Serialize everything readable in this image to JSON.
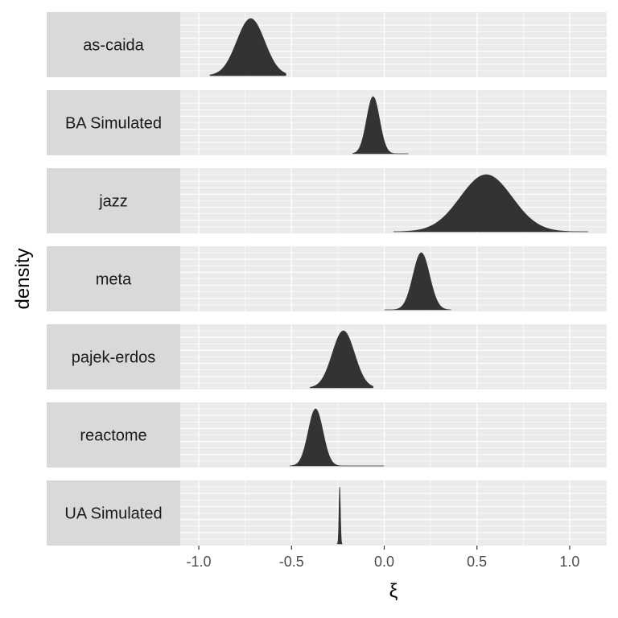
{
  "chart_data": {
    "type": "area",
    "xlabel": "ξ",
    "ylabel": "density",
    "xlim": [
      -1.1,
      1.2
    ],
    "x_ticks": [
      -1.0,
      -0.5,
      0.0,
      0.5,
      1.0
    ],
    "x_tick_labels": [
      "-1.0",
      "-0.5",
      "0.0",
      "0.5",
      "1.0"
    ],
    "grid": true,
    "legend": "none",
    "facets": [
      {
        "label": "as-caida",
        "peak": -0.72,
        "spread": 0.075,
        "min": -0.94,
        "max": -0.53
      },
      {
        "label": "BA Simulated",
        "peak": -0.06,
        "spread": 0.035,
        "min": -0.17,
        "max": 0.13
      },
      {
        "label": "jazz",
        "peak": 0.55,
        "spread": 0.14,
        "min": 0.05,
        "max": 1.1
      },
      {
        "label": "meta",
        "peak": 0.2,
        "spread": 0.045,
        "min": 0.0,
        "max": 0.36
      },
      {
        "label": "pajek-erdos",
        "peak": -0.22,
        "spread": 0.06,
        "min": -0.4,
        "max": -0.06
      },
      {
        "label": "reactome",
        "peak": -0.37,
        "spread": 0.04,
        "min": -0.51,
        "max": 0.0
      },
      {
        "label": "UA Simulated",
        "peak": -0.24,
        "spread": 0.004,
        "min": -0.255,
        "max": -0.225
      }
    ]
  }
}
